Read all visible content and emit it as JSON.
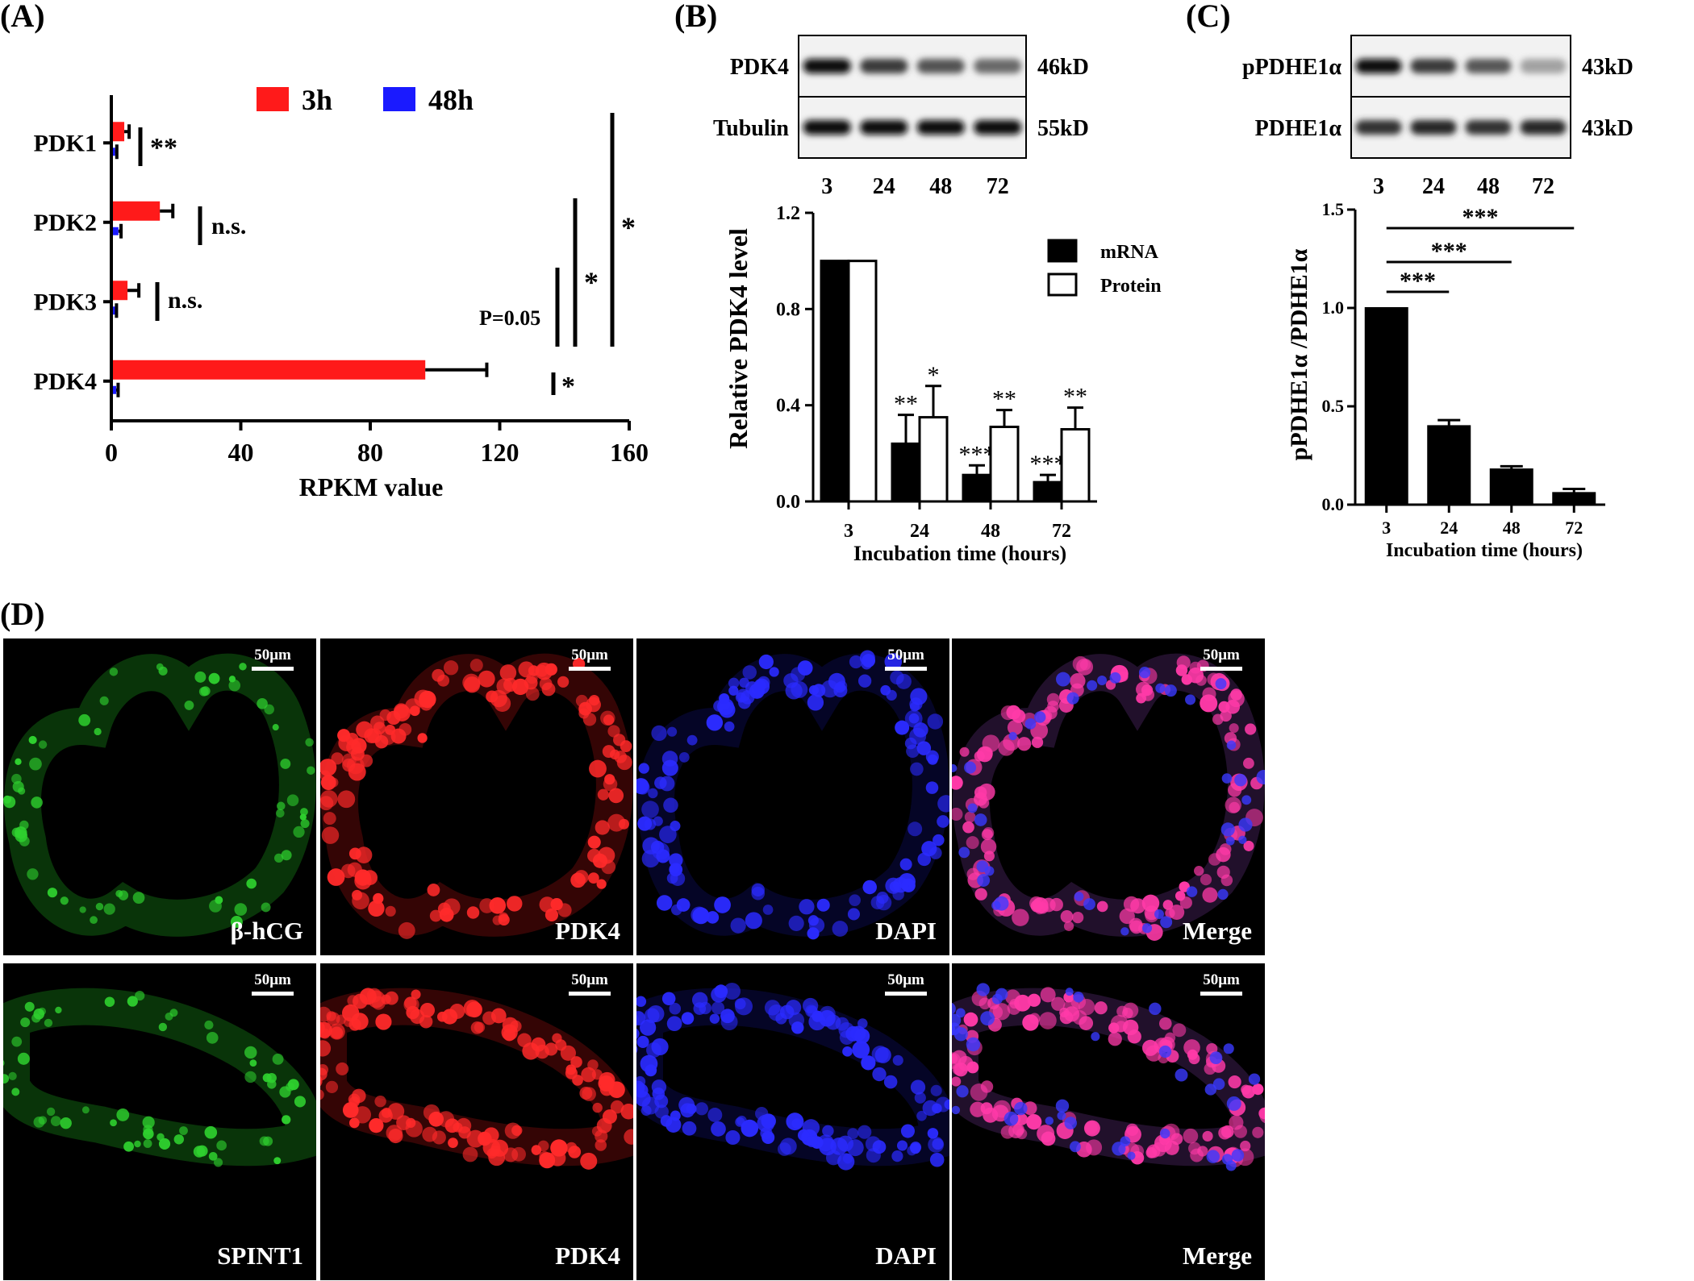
{
  "panel_labels": {
    "a": "(A)",
    "b": "(B)",
    "c": "(C)",
    "d": "(D)"
  },
  "colors": {
    "h3": "#ff1a1a",
    "h48": "#1a1aff",
    "black": "#000000",
    "white": "#ffffff"
  },
  "chart_data": [
    {
      "id": "A",
      "type": "bar",
      "orientation": "horizontal",
      "categories": [
        "PDK1",
        "PDK2",
        "PDK3",
        "PDK4"
      ],
      "series": [
        {
          "name": "3h",
          "color": "#ff1a1a",
          "values": [
            4,
            15,
            5,
            97
          ],
          "errors": [
            1.5,
            4,
            3.5,
            19
          ]
        },
        {
          "name": "48h",
          "color": "#1a1aff",
          "values": [
            1.2,
            2.2,
            1.2,
            1.5
          ],
          "errors": [
            0.5,
            0.8,
            0.4,
            0.6
          ]
        }
      ],
      "xlabel": "RPKM value",
      "xlim": [
        0,
        160
      ],
      "xticks": [
        "0",
        "40",
        "80",
        "120",
        "160"
      ],
      "significance": [
        "**",
        "n.s.",
        "n.s.",
        "*",
        "P=0.05",
        "*",
        "*"
      ]
    },
    {
      "id": "B",
      "type": "bar",
      "categories": [
        "3",
        "24",
        "48",
        "72"
      ],
      "series": [
        {
          "name": "mRNA",
          "fill": "#000000",
          "values": [
            1.0,
            0.24,
            0.11,
            0.08
          ],
          "errors": [
            0,
            0.12,
            0.04,
            0.03
          ],
          "stars": [
            "",
            "**",
            "***",
            "***"
          ]
        },
        {
          "name": "Protein",
          "fill": "#ffffff",
          "values": [
            1.0,
            0.35,
            0.31,
            0.3
          ],
          "errors": [
            0,
            0.13,
            0.07,
            0.09
          ],
          "stars": [
            "",
            "*",
            "**",
            "**"
          ]
        }
      ],
      "xlabel": "Incubation time (hours)",
      "ylabel": "Relative PDK4  level",
      "ylim": [
        0,
        1.2
      ],
      "yticks": [
        "0.0",
        "0.4",
        "0.8",
        "1.2"
      ]
    },
    {
      "id": "C",
      "type": "bar",
      "categories": [
        "3",
        "24",
        "48",
        "72"
      ],
      "series": [
        {
          "name": "pPDHE1α /PDHE1α",
          "fill": "#000000",
          "values": [
            1.0,
            0.4,
            0.18,
            0.06
          ],
          "errors": [
            0,
            0.03,
            0.015,
            0.02
          ]
        }
      ],
      "xlabel": "Incubation time (hours)",
      "ylabel": "pPDHE1α /PDHE1α",
      "ylim": [
        0,
        1.5
      ],
      "yticks": [
        "0.0",
        "0.5",
        "1.0",
        "1.5"
      ],
      "significance": [
        "***",
        "***",
        "***"
      ]
    }
  ],
  "blot_b": {
    "rows": [
      {
        "name": "PDK4",
        "size": "46kD",
        "intensities": [
          1.0,
          0.75,
          0.62,
          0.5
        ]
      },
      {
        "name": "Tubulin",
        "size": "55kD",
        "intensities": [
          1.0,
          1.0,
          1.0,
          1.0
        ]
      }
    ],
    "lanes": [
      "3",
      "24",
      "48",
      "72"
    ]
  },
  "blot_c": {
    "rows": [
      {
        "name": "pPDHE1α",
        "size": "43kD",
        "intensities": [
          1.0,
          0.75,
          0.6,
          0.2
        ]
      },
      {
        "name": "PDHE1α",
        "size": "43kD",
        "intensities": [
          0.8,
          0.85,
          0.8,
          0.85
        ]
      }
    ],
    "lanes": [
      "3",
      "24",
      "48",
      "72"
    ]
  },
  "micrographs": {
    "scalebar": "50μm",
    "rows": [
      [
        "β-hCG",
        "PDK4",
        "DAPI",
        "Merge"
      ],
      [
        "SPINT1",
        "PDK4",
        "DAPI",
        "Merge"
      ]
    ]
  }
}
